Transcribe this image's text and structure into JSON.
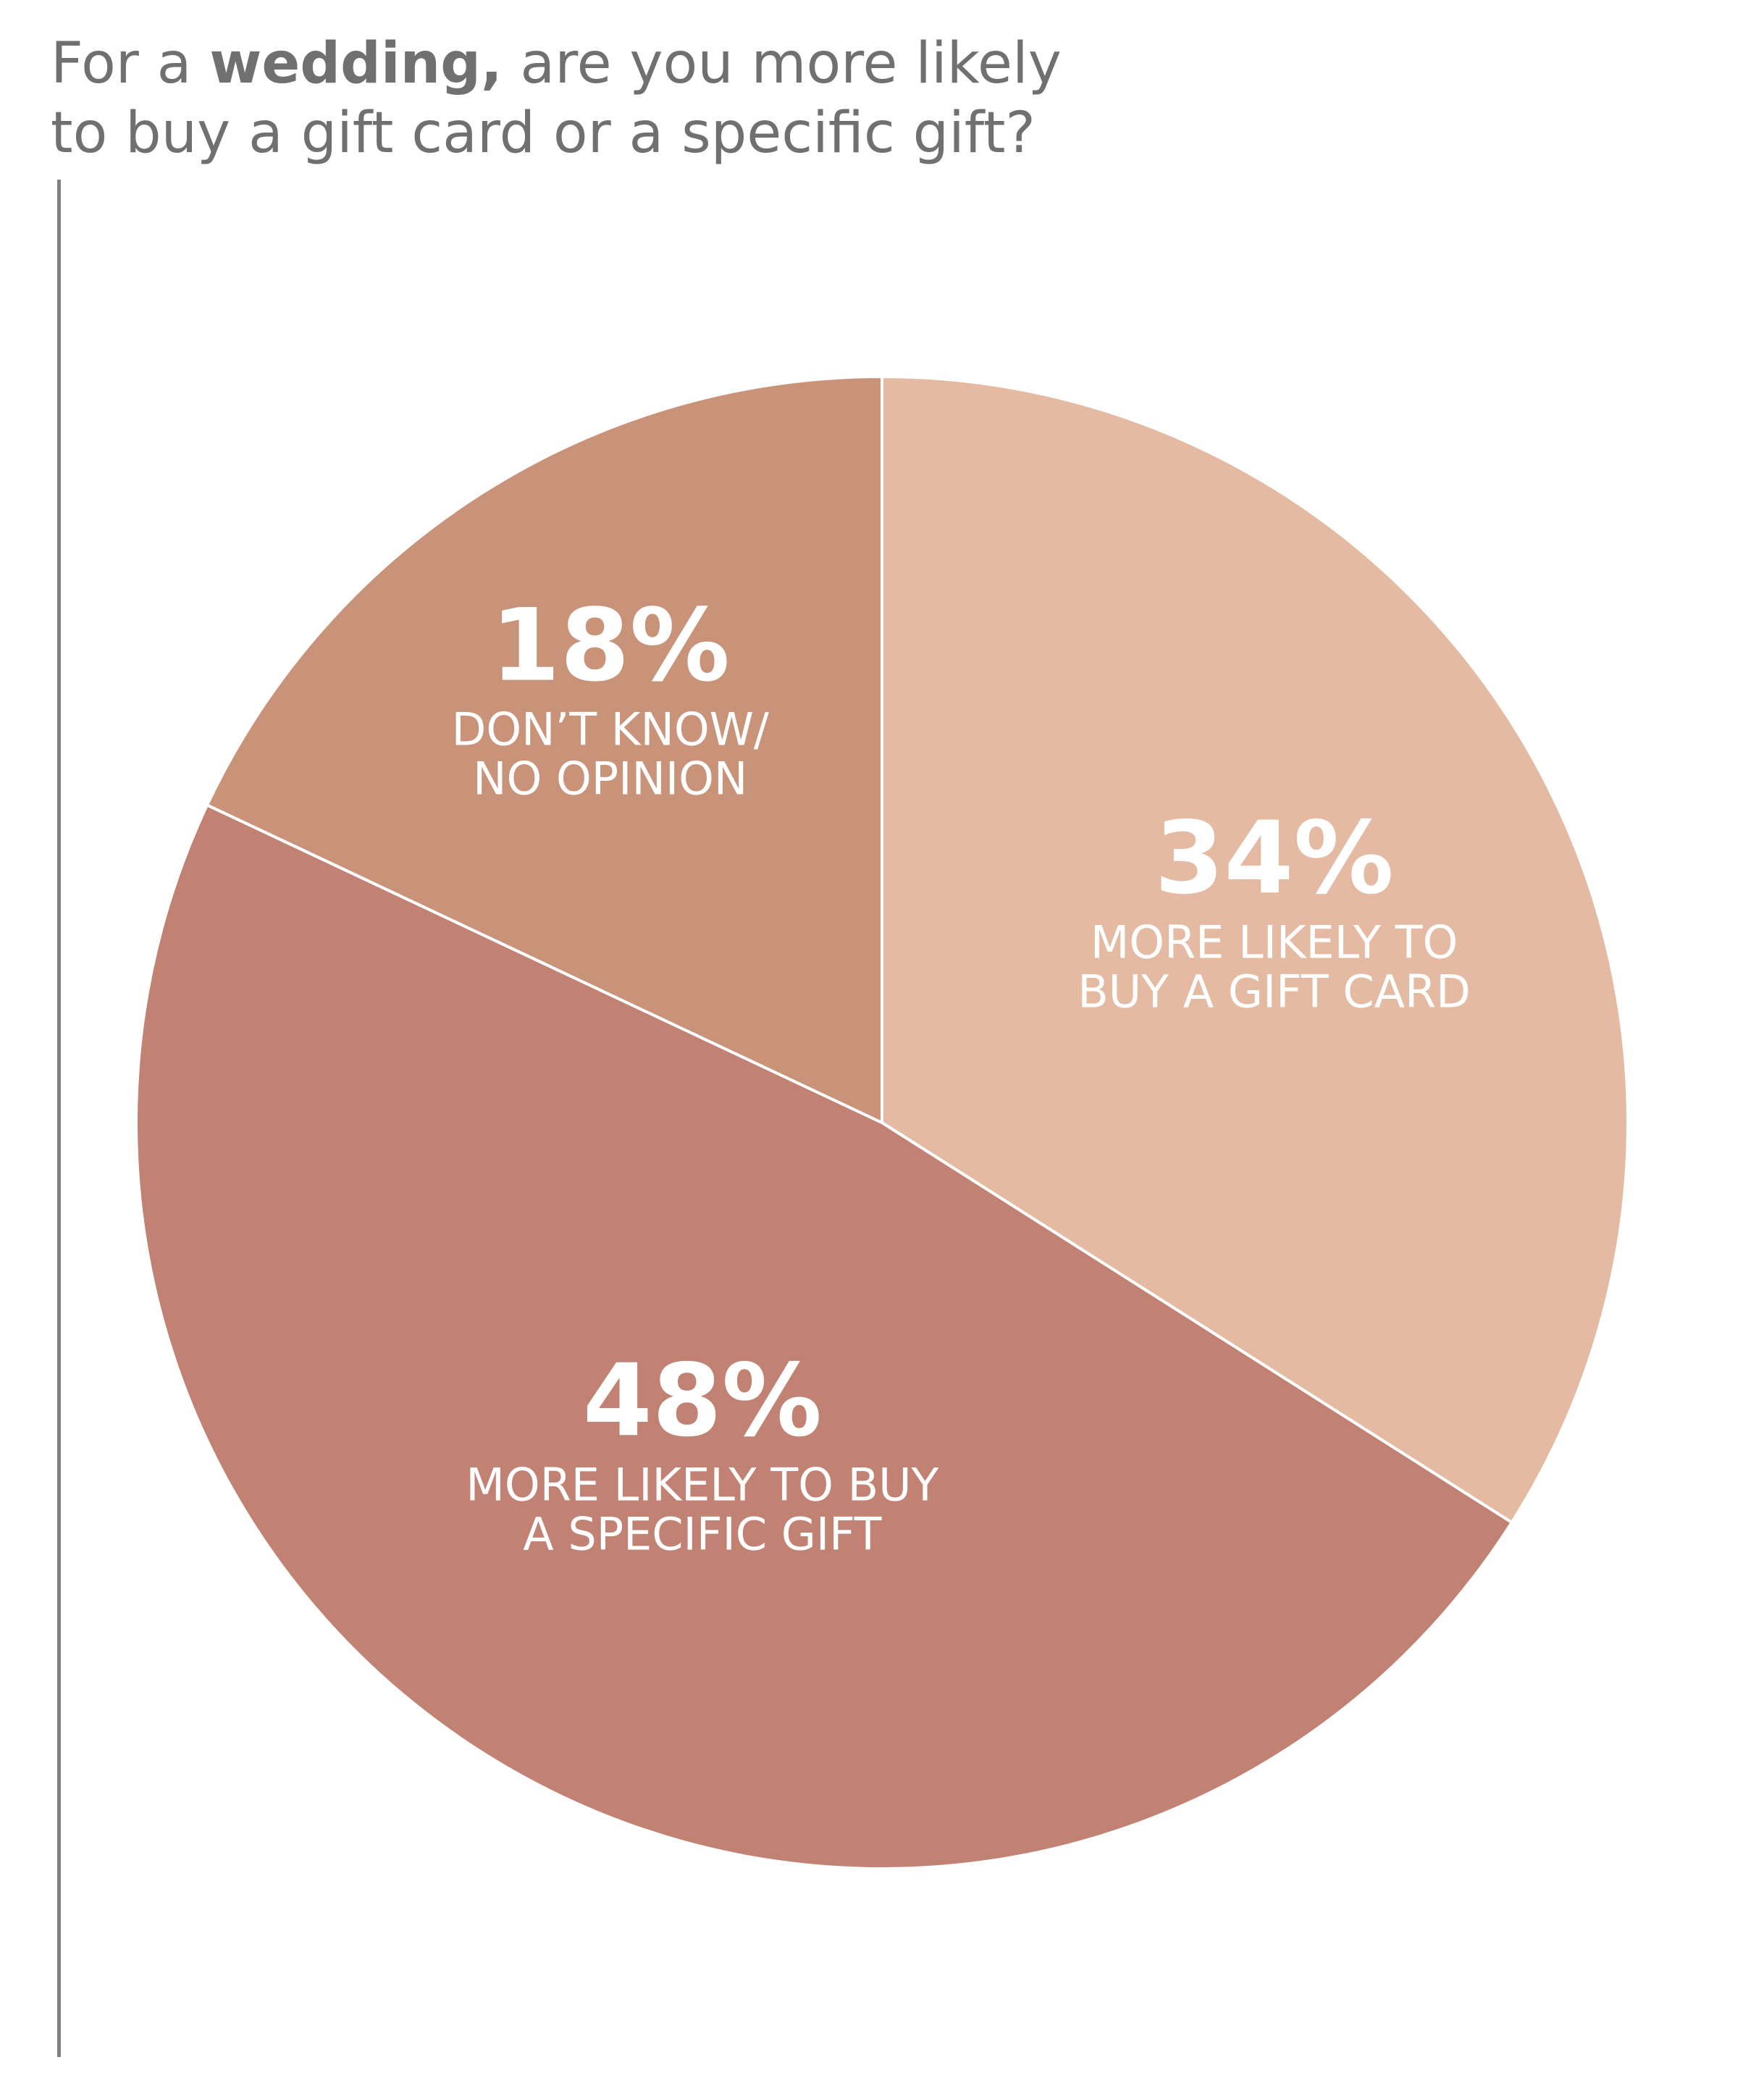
{
  "title": {
    "line1_pre": "For a ",
    "line1_bold": "wedding,",
    "line1_post": " are you more likely",
    "line2": "to buy a gift card or a specific gift?"
  },
  "chart_data": {
    "type": "pie",
    "title": "For a wedding, are you more likely to buy a gift card or a specific gift?",
    "start_angle_deg": 0,
    "direction": "clockwise",
    "legend": "none",
    "slices": [
      {
        "value": 34,
        "value_label": "34%",
        "label_lines": [
          "MORE LIKELY TO",
          "BUY A GIFT CARD"
        ],
        "color": "#E4BBA2"
      },
      {
        "value": 48,
        "value_label": "48%",
        "label_lines": [
          "MORE LIKELY TO BUY",
          "A SPECIFIC GIFT"
        ],
        "color": "#C18274"
      },
      {
        "value": 18,
        "value_label": "18%",
        "label_lines": [
          "DON’T KNOW/",
          "NO OPINION"
        ],
        "color": "#C9937A"
      }
    ]
  }
}
